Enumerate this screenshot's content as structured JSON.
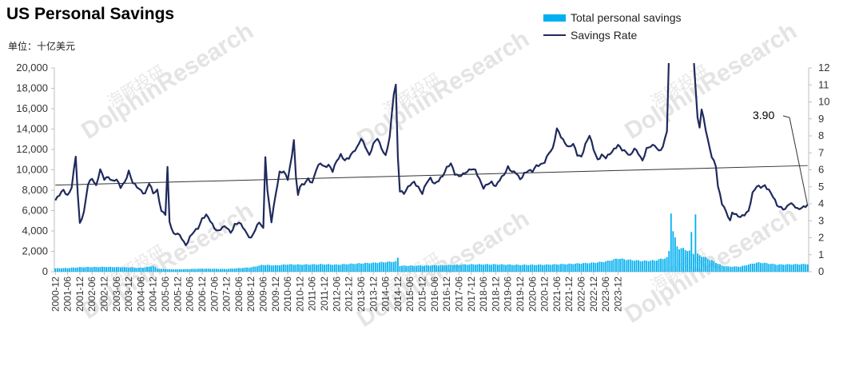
{
  "title": "US Personal Savings",
  "unit_label": "单位：十亿美元",
  "watermark_text": "DolphinResearch",
  "watermark_cn": "海豚投研",
  "colors": {
    "bars": "#00b0f0",
    "line": "#1f2a5c",
    "trend": "#333333",
    "axis": "#bfbfbf",
    "text": "#333333"
  },
  "chart_data": {
    "type": "bar+line",
    "x_tick_labels": [
      "2000-12",
      "2001-06",
      "2001-12",
      "2002-06",
      "2002-12",
      "2003-06",
      "2003-12",
      "2004-06",
      "2004-12",
      "2005-06",
      "2005-12",
      "2006-06",
      "2006-12",
      "2007-06",
      "2007-12",
      "2008-06",
      "2008-12",
      "2009-06",
      "2009-12",
      "2010-06",
      "2010-12",
      "2011-06",
      "2011-12",
      "2012-06",
      "2012-12",
      "2013-06",
      "2013-12",
      "2014-06",
      "2014-12",
      "2015-06",
      "2015-12",
      "2016-06",
      "2016-12",
      "2017-06",
      "2017-12",
      "2018-06",
      "2018-12",
      "2019-06",
      "2019-12",
      "2020-06",
      "2020-12",
      "2021-06",
      "2021-12",
      "2022-06",
      "2022-12",
      "2023-06",
      "2023-12"
    ],
    "y_left": {
      "min": 0,
      "max": 20000,
      "step": 2000,
      "tick_labels": [
        "0",
        "2,000",
        "4,000",
        "6,000",
        "8,000",
        "10,000",
        "12,000",
        "14,000",
        "16,000",
        "18,000",
        "20,000"
      ]
    },
    "y_right": {
      "min": 0,
      "max": 12,
      "step": 1,
      "tick_labels": [
        "0",
        "1",
        "2",
        "3",
        "4",
        "5",
        "6",
        "7",
        "8",
        "9",
        "10",
        "11",
        "12"
      ]
    },
    "series": [
      {
        "name": "Total personal savings",
        "type": "bar",
        "axis": "left",
        "keypoints": [
          [
            0,
            330
          ],
          [
            6,
            360
          ],
          [
            12,
            440
          ],
          [
            24,
            470
          ],
          [
            36,
            430
          ],
          [
            42,
            370
          ],
          [
            48,
            560
          ],
          [
            50,
            300
          ],
          [
            54,
            250
          ],
          [
            60,
            230
          ],
          [
            72,
            300
          ],
          [
            84,
            270
          ],
          [
            90,
            350
          ],
          [
            96,
            430
          ],
          [
            102,
            680
          ],
          [
            108,
            620
          ],
          [
            114,
            720
          ],
          [
            120,
            700
          ],
          [
            132,
            730
          ],
          [
            138,
            690
          ],
          [
            144,
            760
          ],
          [
            150,
            820
          ],
          [
            156,
            870
          ],
          [
            162,
            950
          ],
          [
            167,
            1000
          ],
          [
            168,
            1350
          ],
          [
            169,
            580
          ],
          [
            180,
            600
          ],
          [
            192,
            650
          ],
          [
            204,
            720
          ],
          [
            216,
            720
          ],
          [
            228,
            670
          ],
          [
            240,
            690
          ],
          [
            252,
            760
          ],
          [
            264,
            880
          ],
          [
            270,
            1000
          ],
          [
            276,
            1300
          ],
          [
            282,
            1150
          ],
          [
            288,
            1060
          ],
          [
            294,
            1100
          ],
          [
            300,
            1380
          ],
          [
            301,
            2000
          ],
          [
            302,
            6000
          ],
          [
            303,
            4000
          ],
          [
            304,
            3200
          ],
          [
            305,
            2500
          ],
          [
            306,
            2300
          ],
          [
            309,
            2200
          ],
          [
            311,
            2000
          ],
          [
            312,
            3800
          ],
          [
            313,
            1800
          ],
          [
            314,
            5700
          ],
          [
            315,
            1700
          ],
          [
            318,
            1450
          ],
          [
            321,
            1200
          ],
          [
            324,
            900
          ],
          [
            327,
            600
          ],
          [
            330,
            500
          ],
          [
            336,
            500
          ],
          [
            342,
            800
          ],
          [
            345,
            900
          ],
          [
            348,
            850
          ],
          [
            354,
            700
          ],
          [
            360,
            720
          ],
          [
            366,
            740
          ],
          [
            369,
            750
          ]
        ]
      },
      {
        "name": "Savings Rate",
        "type": "line",
        "axis": "right",
        "keypoints": [
          [
            0,
            4.2
          ],
          [
            2,
            4.5
          ],
          [
            4,
            4.8
          ],
          [
            6,
            4.5
          ],
          [
            8,
            5.0
          ],
          [
            10,
            6.8
          ],
          [
            11,
            4.5
          ],
          [
            12,
            2.8
          ],
          [
            14,
            3.5
          ],
          [
            16,
            5.2
          ],
          [
            18,
            5.5
          ],
          [
            20,
            5.0
          ],
          [
            22,
            6.0
          ],
          [
            24,
            5.5
          ],
          [
            26,
            5.6
          ],
          [
            28,
            5.3
          ],
          [
            30,
            5.4
          ],
          [
            32,
            5.0
          ],
          [
            34,
            5.3
          ],
          [
            36,
            5.9
          ],
          [
            38,
            5.2
          ],
          [
            40,
            5.0
          ],
          [
            42,
            4.8
          ],
          [
            44,
            4.6
          ],
          [
            46,
            5.2
          ],
          [
            48,
            4.6
          ],
          [
            50,
            4.8
          ],
          [
            52,
            3.6
          ],
          [
            54,
            3.4
          ],
          [
            55,
            6.1
          ],
          [
            56,
            2.9
          ],
          [
            58,
            2.2
          ],
          [
            60,
            2.3
          ],
          [
            62,
            2.0
          ],
          [
            64,
            1.5
          ],
          [
            66,
            2.0
          ],
          [
            68,
            2.4
          ],
          [
            70,
            2.6
          ],
          [
            72,
            3.1
          ],
          [
            74,
            3.3
          ],
          [
            76,
            3.0
          ],
          [
            78,
            2.6
          ],
          [
            80,
            2.4
          ],
          [
            82,
            2.6
          ],
          [
            84,
            2.6
          ],
          [
            86,
            2.3
          ],
          [
            88,
            2.8
          ],
          [
            90,
            2.9
          ],
          [
            92,
            2.6
          ],
          [
            94,
            2.2
          ],
          [
            96,
            2.0
          ],
          [
            98,
            2.5
          ],
          [
            100,
            2.9
          ],
          [
            102,
            2.5
          ],
          [
            103,
            6.8
          ],
          [
            104,
            4.8
          ],
          [
            106,
            3.0
          ],
          [
            108,
            4.5
          ],
          [
            110,
            5.8
          ],
          [
            112,
            5.9
          ],
          [
            114,
            5.5
          ],
          [
            116,
            6.8
          ],
          [
            117,
            7.8
          ],
          [
            118,
            5.5
          ],
          [
            119,
            4.5
          ],
          [
            120,
            5.0
          ],
          [
            122,
            5.2
          ],
          [
            124,
            5.5
          ],
          [
            126,
            5.2
          ],
          [
            128,
            6.0
          ],
          [
            130,
            6.4
          ],
          [
            132,
            6.2
          ],
          [
            134,
            6.3
          ],
          [
            136,
            5.9
          ],
          [
            138,
            6.5
          ],
          [
            140,
            6.9
          ],
          [
            142,
            6.6
          ],
          [
            144,
            6.7
          ],
          [
            146,
            7.0
          ],
          [
            148,
            7.3
          ],
          [
            150,
            7.9
          ],
          [
            152,
            7.4
          ],
          [
            154,
            6.8
          ],
          [
            156,
            7.5
          ],
          [
            158,
            7.9
          ],
          [
            160,
            7.3
          ],
          [
            162,
            6.8
          ],
          [
            164,
            7.9
          ],
          [
            166,
            10.5
          ],
          [
            167,
            11.0
          ],
          [
            168,
            6.8
          ],
          [
            169,
            4.8
          ],
          [
            171,
            4.6
          ],
          [
            174,
            5.1
          ],
          [
            176,
            5.3
          ],
          [
            178,
            5.0
          ],
          [
            180,
            4.6
          ],
          [
            182,
            5.2
          ],
          [
            184,
            5.5
          ],
          [
            186,
            5.2
          ],
          [
            188,
            5.4
          ],
          [
            190,
            5.6
          ],
          [
            192,
            6.1
          ],
          [
            194,
            6.4
          ],
          [
            196,
            5.8
          ],
          [
            198,
            5.6
          ],
          [
            200,
            5.7
          ],
          [
            202,
            5.9
          ],
          [
            204,
            6.1
          ],
          [
            206,
            6.0
          ],
          [
            208,
            5.4
          ],
          [
            210,
            4.9
          ],
          [
            212,
            5.2
          ],
          [
            214,
            5.3
          ],
          [
            216,
            5.0
          ],
          [
            218,
            5.4
          ],
          [
            220,
            5.7
          ],
          [
            222,
            6.2
          ],
          [
            224,
            5.9
          ],
          [
            226,
            5.8
          ],
          [
            228,
            5.4
          ],
          [
            230,
            5.8
          ],
          [
            232,
            6.0
          ],
          [
            234,
            5.9
          ],
          [
            236,
            6.2
          ],
          [
            238,
            6.3
          ],
          [
            240,
            6.5
          ],
          [
            242,
            7.0
          ],
          [
            244,
            7.2
          ],
          [
            246,
            8.4
          ],
          [
            248,
            8.0
          ],
          [
            250,
            7.6
          ],
          [
            252,
            7.3
          ],
          [
            254,
            7.5
          ],
          [
            256,
            6.9
          ],
          [
            258,
            6.8
          ],
          [
            260,
            7.5
          ],
          [
            262,
            8.0
          ],
          [
            264,
            7.2
          ],
          [
            266,
            6.6
          ],
          [
            268,
            6.9
          ],
          [
            270,
            6.7
          ],
          [
            272,
            6.9
          ],
          [
            274,
            7.2
          ],
          [
            276,
            7.5
          ],
          [
            278,
            7.2
          ],
          [
            280,
            7.0
          ],
          [
            282,
            6.8
          ],
          [
            284,
            7.3
          ],
          [
            286,
            7.0
          ],
          [
            288,
            6.5
          ],
          [
            290,
            7.2
          ],
          [
            292,
            7.4
          ],
          [
            294,
            7.5
          ],
          [
            296,
            7.1
          ],
          [
            298,
            7.3
          ],
          [
            300,
            8.3
          ],
          [
            301,
            12.8
          ],
          [
            303,
            14.0
          ],
          [
            312,
            13.0
          ],
          [
            313,
            12.8
          ],
          [
            315,
            9.0
          ],
          [
            316,
            8.5
          ],
          [
            317,
            9.5
          ],
          [
            318,
            9.0
          ],
          [
            320,
            7.8
          ],
          [
            322,
            6.8
          ],
          [
            324,
            6.2
          ],
          [
            325,
            5.0
          ],
          [
            327,
            4.0
          ],
          [
            328,
            3.8
          ],
          [
            330,
            3.3
          ],
          [
            331,
            3.0
          ],
          [
            332,
            3.5
          ],
          [
            334,
            3.3
          ],
          [
            336,
            3.2
          ],
          [
            338,
            3.4
          ],
          [
            340,
            3.6
          ],
          [
            342,
            4.6
          ],
          [
            344,
            5.0
          ],
          [
            346,
            5.0
          ],
          [
            348,
            5.1
          ],
          [
            350,
            4.8
          ],
          [
            352,
            4.4
          ],
          [
            354,
            3.9
          ],
          [
            356,
            3.8
          ],
          [
            358,
            3.7
          ],
          [
            360,
            4.0
          ],
          [
            362,
            3.9
          ],
          [
            364,
            3.7
          ],
          [
            366,
            3.8
          ],
          [
            369,
            3.9
          ]
        ]
      }
    ],
    "trend_line": {
      "axis": "right",
      "start": [
        0,
        5.1
      ],
      "end": [
        369,
        6.25
      ]
    },
    "annotation": {
      "text": "3.90",
      "value": 3.9
    },
    "legend_position": "top-right",
    "grid": false
  }
}
